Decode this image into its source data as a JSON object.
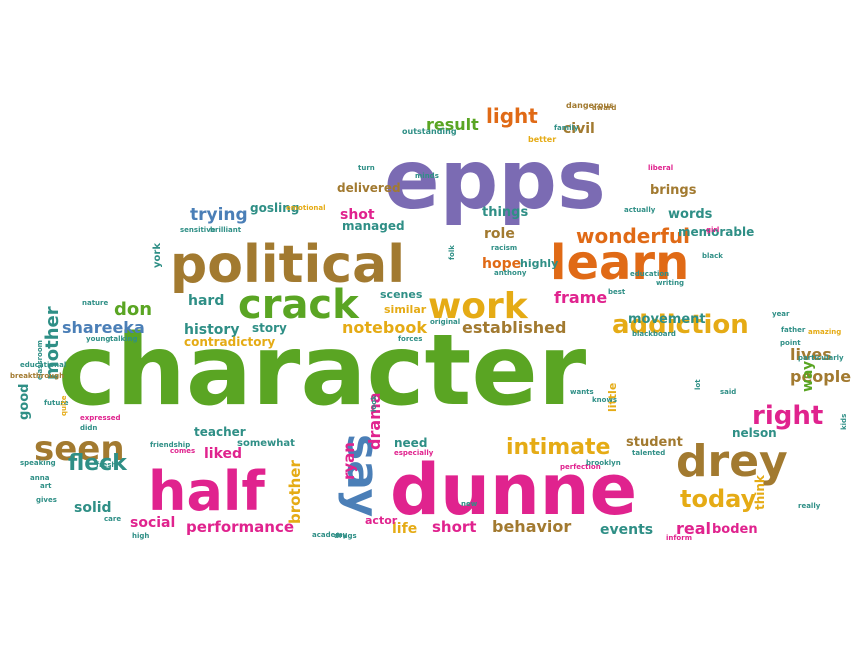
{
  "colors": {
    "background": "#ffffff",
    "purple": "#7b6bb3",
    "green": "#5aa523",
    "brown": "#a27a30",
    "orange": "#e06a16",
    "pink": "#e0238e",
    "gold": "#e5ab15",
    "teal": "#2f8f86",
    "blue": "#4b7fb7"
  },
  "words": [
    {
      "text": "character",
      "weight": 100,
      "color": "green"
    },
    {
      "text": "epps",
      "weight": 78,
      "color": "purple"
    },
    {
      "text": "dunne",
      "weight": 62,
      "color": "pink"
    },
    {
      "text": "political",
      "weight": 45,
      "color": "brown"
    },
    {
      "text": "half",
      "weight": 44,
      "color": "pink"
    },
    {
      "text": "learn",
      "weight": 40,
      "color": "orange"
    },
    {
      "text": "drey",
      "weight": 36,
      "color": "brown"
    },
    {
      "text": "crack",
      "weight": 32,
      "color": "green"
    },
    {
      "text": "work",
      "weight": 30,
      "color": "gold"
    },
    {
      "text": "say",
      "weight": 30,
      "color": "blue"
    },
    {
      "text": "seen",
      "weight": 26,
      "color": "brown"
    },
    {
      "text": "addiction",
      "weight": 22,
      "color": "gold"
    },
    {
      "text": "right",
      "weight": 22,
      "color": "pink"
    },
    {
      "text": "today",
      "weight": 21,
      "color": "gold"
    },
    {
      "text": "fleck",
      "weight": 19,
      "color": "teal"
    },
    {
      "text": "intimate",
      "weight": 19,
      "color": "gold"
    },
    {
      "text": "wonderful",
      "weight": 17,
      "color": "orange"
    },
    {
      "text": "light",
      "weight": 16,
      "color": "orange"
    },
    {
      "text": "mother",
      "weight": 15,
      "color": "teal"
    },
    {
      "text": "don",
      "weight": 15,
      "color": "green"
    },
    {
      "text": "shareeka",
      "weight": 14,
      "color": "blue"
    },
    {
      "text": "frame",
      "weight": 14,
      "color": "pink"
    },
    {
      "text": "result",
      "weight": 14,
      "color": "green"
    },
    {
      "text": "established",
      "weight": 14,
      "color": "brown"
    },
    {
      "text": "notebook",
      "weight": 14,
      "color": "gold"
    },
    {
      "text": "trying",
      "weight": 14,
      "color": "blue"
    },
    {
      "text": "lives",
      "weight": 14,
      "color": "brown"
    },
    {
      "text": "people",
      "weight": 14,
      "color": "brown"
    },
    {
      "text": "behavior",
      "weight": 14,
      "color": "brown"
    },
    {
      "text": "drama",
      "weight": 14,
      "color": "pink"
    },
    {
      "text": "brother",
      "weight": 13,
      "color": "gold"
    },
    {
      "text": "way",
      "weight": 13,
      "color": "green"
    },
    {
      "text": "real",
      "weight": 13,
      "color": "pink"
    },
    {
      "text": "ryan",
      "weight": 13,
      "color": "pink"
    },
    {
      "text": "performance",
      "weight": 13,
      "color": "pink"
    },
    {
      "text": "short",
      "weight": 13,
      "color": "pink"
    },
    {
      "text": "liked",
      "weight": 12,
      "color": "pink"
    },
    {
      "text": "shot",
      "weight": 12,
      "color": "pink"
    },
    {
      "text": "hard",
      "weight": 12,
      "color": "teal"
    },
    {
      "text": "history",
      "weight": 12,
      "color": "teal"
    },
    {
      "text": "social",
      "weight": 12,
      "color": "pink"
    },
    {
      "text": "solid",
      "weight": 12,
      "color": "teal"
    },
    {
      "text": "role",
      "weight": 12,
      "color": "brown"
    },
    {
      "text": "hope",
      "weight": 12,
      "color": "orange"
    },
    {
      "text": "civil",
      "weight": 12,
      "color": "brown"
    },
    {
      "text": "events",
      "weight": 12,
      "color": "teal"
    },
    {
      "text": "life",
      "weight": 12,
      "color": "gold"
    },
    {
      "text": "student",
      "weight": 11,
      "color": "brown"
    },
    {
      "text": "good",
      "weight": 11,
      "color": "teal"
    },
    {
      "text": "movement",
      "weight": 11,
      "color": "teal"
    },
    {
      "text": "boden",
      "weight": 11,
      "color": "pink"
    },
    {
      "text": "things",
      "weight": 11,
      "color": "teal"
    },
    {
      "text": "words",
      "weight": 11,
      "color": "teal"
    },
    {
      "text": "brings",
      "weight": 11,
      "color": "brown"
    },
    {
      "text": "need",
      "weight": 11,
      "color": "teal"
    },
    {
      "text": "managed",
      "weight": 11,
      "color": "teal"
    },
    {
      "text": "delivered",
      "weight": 10,
      "color": "brown"
    },
    {
      "text": "gosling",
      "weight": 10,
      "color": "teal"
    },
    {
      "text": "story",
      "weight": 10,
      "color": "teal"
    },
    {
      "text": "contradictory",
      "weight": 10,
      "color": "gold"
    },
    {
      "text": "teacher",
      "weight": 10,
      "color": "teal"
    },
    {
      "text": "nelson",
      "weight": 10,
      "color": "teal"
    },
    {
      "text": "think",
      "weight": 10,
      "color": "gold"
    },
    {
      "text": "memorable",
      "weight": 10,
      "color": "teal"
    },
    {
      "text": "highly",
      "weight": 10,
      "color": "teal"
    },
    {
      "text": "scenes",
      "weight": 9,
      "color": "teal"
    },
    {
      "text": "similar",
      "weight": 9,
      "color": "gold"
    },
    {
      "text": "little",
      "weight": 9,
      "color": "gold"
    },
    {
      "text": "actor",
      "weight": 9,
      "color": "pink"
    },
    {
      "text": "york",
      "weight": 9,
      "color": "teal"
    },
    {
      "text": "somewhat",
      "weight": 8,
      "color": "teal"
    },
    {
      "text": "outstanding",
      "weight": 8,
      "color": "teal"
    },
    {
      "text": "better",
      "weight": 7,
      "color": "gold"
    },
    {
      "text": "dangerous",
      "weight": 7,
      "color": "brown"
    },
    {
      "text": "award",
      "weight": 7,
      "color": "brown"
    },
    {
      "text": "liberal",
      "weight": 7,
      "color": "pink"
    },
    {
      "text": "actually",
      "weight": 6,
      "color": "teal"
    },
    {
      "text": "black",
      "weight": 6,
      "color": "teal"
    },
    {
      "text": "sensitive",
      "weight": 6,
      "color": "teal"
    },
    {
      "text": "brilliant",
      "weight": 6,
      "color": "teal"
    },
    {
      "text": "emotional",
      "weight": 6,
      "color": "gold"
    },
    {
      "text": "nature",
      "weight": 6,
      "color": "teal"
    },
    {
      "text": "young",
      "weight": 6,
      "color": "teal"
    },
    {
      "text": "talking",
      "weight": 6,
      "color": "teal"
    },
    {
      "text": "classroom",
      "weight": 6,
      "color": "teal"
    },
    {
      "text": "expressed",
      "weight": 6,
      "color": "pink"
    },
    {
      "text": "breakthrough",
      "weight": 6,
      "color": "brown"
    },
    {
      "text": "educational",
      "weight": 6,
      "color": "teal"
    },
    {
      "text": "future",
      "weight": 6,
      "color": "teal"
    },
    {
      "text": "quite",
      "weight": 6,
      "color": "gold"
    },
    {
      "text": "didn",
      "weight": 6,
      "color": "teal"
    },
    {
      "text": "speaking",
      "weight": 6,
      "color": "teal"
    },
    {
      "text": "anna",
      "weight": 6,
      "color": "teal"
    },
    {
      "text": "art",
      "weight": 6,
      "color": "teal"
    },
    {
      "text": "gives",
      "weight": 6,
      "color": "teal"
    },
    {
      "text": "care",
      "weight": 6,
      "color": "teal"
    },
    {
      "text": "high",
      "weight": 6,
      "color": "teal"
    },
    {
      "text": "friendship",
      "weight": 6,
      "color": "teal"
    },
    {
      "text": "fresh",
      "weight": 6,
      "color": "teal"
    },
    {
      "text": "comes",
      "weight": 6,
      "color": "pink"
    },
    {
      "text": "academy",
      "weight": 6,
      "color": "teal"
    },
    {
      "text": "drugs",
      "weight": 6,
      "color": "teal"
    },
    {
      "text": "especially",
      "weight": 6,
      "color": "pink"
    },
    {
      "text": "new",
      "weight": 6,
      "color": "teal"
    },
    {
      "text": "perfection",
      "weight": 6,
      "color": "pink"
    },
    {
      "text": "talented",
      "weight": 6,
      "color": "teal"
    },
    {
      "text": "brooklyn",
      "weight": 6,
      "color": "teal"
    },
    {
      "text": "inform",
      "weight": 6,
      "color": "pink"
    },
    {
      "text": "really",
      "weight": 6,
      "color": "teal"
    },
    {
      "text": "kids",
      "weight": 6,
      "color": "teal"
    },
    {
      "text": "particularly",
      "weight": 6,
      "color": "teal"
    },
    {
      "text": "father",
      "weight": 6,
      "color": "teal"
    },
    {
      "text": "amazing",
      "weight": 6,
      "color": "gold"
    },
    {
      "text": "year",
      "weight": 6,
      "color": "teal"
    },
    {
      "text": "point",
      "weight": 6,
      "color": "teal"
    },
    {
      "text": "blackboard",
      "weight": 6,
      "color": "teal"
    },
    {
      "text": "forces",
      "weight": 6,
      "color": "teal"
    },
    {
      "text": "original",
      "weight": 6,
      "color": "teal"
    },
    {
      "text": "best",
      "weight": 6,
      "color": "teal"
    },
    {
      "text": "education",
      "weight": 6,
      "color": "teal"
    },
    {
      "text": "writing",
      "weight": 6,
      "color": "teal"
    },
    {
      "text": "racism",
      "weight": 6,
      "color": "teal"
    },
    {
      "text": "anthony",
      "weight": 6,
      "color": "teal"
    },
    {
      "text": "knows",
      "weight": 6,
      "color": "teal"
    },
    {
      "text": "wants",
      "weight": 6,
      "color": "teal"
    },
    {
      "text": "said",
      "weight": 6,
      "color": "teal"
    },
    {
      "text": "lot",
      "weight": 6,
      "color": "teal"
    },
    {
      "text": "look",
      "weight": 6,
      "color": "teal"
    },
    {
      "text": "family",
      "weight": 6,
      "color": "teal"
    },
    {
      "text": "girl",
      "weight": 6,
      "color": "pink"
    },
    {
      "text": "turn",
      "weight": 6,
      "color": "teal"
    },
    {
      "text": "minds",
      "weight": 6,
      "color": "teal"
    },
    {
      "text": "folk",
      "weight": 6,
      "color": "teal"
    },
    {
      "text": "guy",
      "weight": 6,
      "color": "teal"
    }
  ]
}
